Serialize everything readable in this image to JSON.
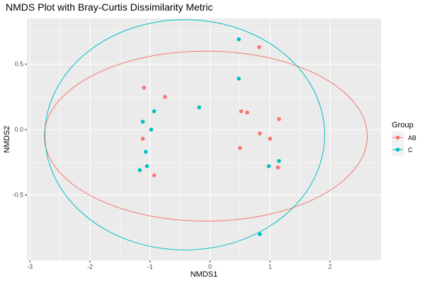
{
  "chart_data": {
    "type": "scatter",
    "title": "NMDS Plot with Bray-Curtis Dissimilarity Metric",
    "xlabel": "NMDS1",
    "ylabel": "NMDS2",
    "xlim": [
      -3.05,
      2.85
    ],
    "ylim": [
      -1.0,
      0.85
    ],
    "xticks": [
      -3,
      -2,
      -1,
      0,
      1,
      2
    ],
    "xtick_labels": [
      "-3",
      "-2",
      "-1",
      "0",
      "1",
      "2"
    ],
    "yticks": [
      -0.5,
      0.0,
      0.5
    ],
    "ytick_labels": [
      "-0.5",
      "0.0",
      "0.5"
    ],
    "grid": true,
    "panel_background": "#ebebeb",
    "legend": {
      "title": "Group",
      "position": "right"
    },
    "series": [
      {
        "name": "AB",
        "color": "#f8766d",
        "points": [
          {
            "x": 0.82,
            "y": 0.63
          },
          {
            "x": -1.1,
            "y": 0.32
          },
          {
            "x": -0.75,
            "y": 0.25
          },
          {
            "x": 0.52,
            "y": 0.14
          },
          {
            "x": 0.62,
            "y": 0.13
          },
          {
            "x": 1.15,
            "y": 0.08
          },
          {
            "x": 0.83,
            "y": -0.03
          },
          {
            "x": 1.0,
            "y": -0.07
          },
          {
            "x": -1.12,
            "y": -0.07
          },
          {
            "x": 0.5,
            "y": -0.14
          },
          {
            "x": 1.13,
            "y": -0.29
          },
          {
            "x": -0.93,
            "y": -0.35
          }
        ],
        "ellipse": {
          "cx": -0.07,
          "cy": -0.05,
          "rx": 2.69,
          "ry": 0.65
        }
      },
      {
        "name": "C",
        "color": "#00bfc4",
        "points": [
          {
            "x": 0.48,
            "y": 0.69
          },
          {
            "x": 0.48,
            "y": 0.39
          },
          {
            "x": -0.18,
            "y": 0.17
          },
          {
            "x": -0.93,
            "y": 0.14
          },
          {
            "x": -1.12,
            "y": 0.06
          },
          {
            "x": -0.98,
            "y": 0.0
          },
          {
            "x": -1.07,
            "y": -0.17
          },
          {
            "x": 1.15,
            "y": -0.24
          },
          {
            "x": 0.98,
            "y": -0.28
          },
          {
            "x": -1.05,
            "y": -0.28
          },
          {
            "x": -1.17,
            "y": -0.31
          },
          {
            "x": 0.83,
            "y": -0.8
          }
        ],
        "ellipse": {
          "cx": -0.42,
          "cy": -0.04,
          "rx": 2.33,
          "ry": 0.88
        }
      }
    ]
  }
}
